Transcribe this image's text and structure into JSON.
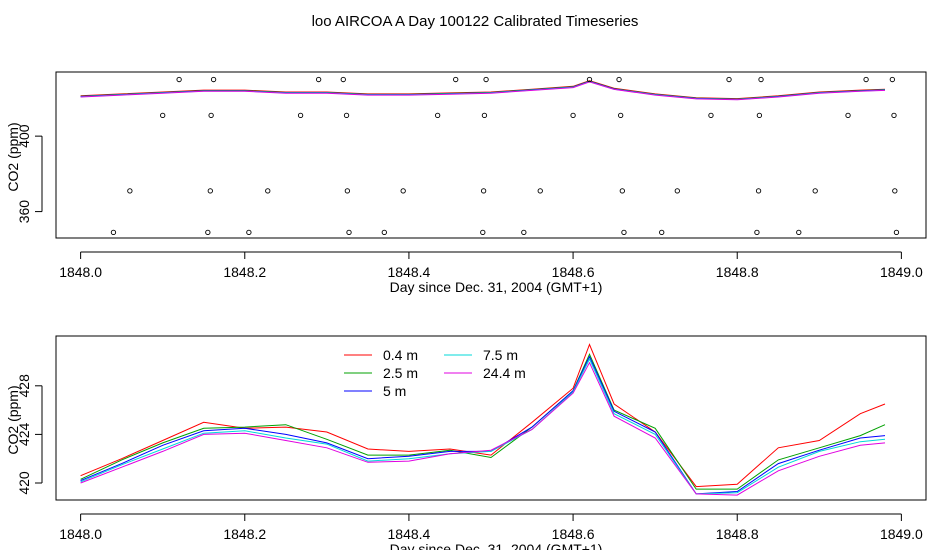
{
  "title": "loo AIRCOA A  Day 100122  Calibrated Timeseries",
  "chart_data": [
    {
      "type": "scatter",
      "xlabel": "Day since Dec. 31, 2004 (GMT+1)",
      "ylabel": "CO2 (ppm)",
      "xlim": [
        1847.97,
        1849.03
      ],
      "ylim": [
        346,
        434
      ],
      "xticks": [
        "1848.0",
        "1848.2",
        "1848.4",
        "1848.6",
        "1848.8",
        "1849.0"
      ],
      "yticks": [
        "360",
        "400"
      ],
      "legend": "none",
      "grid": false,
      "line_series": {
        "x": [
          1848.0,
          1848.05,
          1848.1,
          1848.15,
          1848.2,
          1848.25,
          1848.3,
          1848.35,
          1848.4,
          1848.45,
          1848.5,
          1848.55,
          1848.6,
          1848.62,
          1848.65,
          1848.7,
          1848.75,
          1848.8,
          1848.85,
          1848.9,
          1848.95,
          1848.98
        ],
        "values": [
          421,
          422,
          423,
          424,
          424,
          423,
          423,
          422,
          422,
          422.5,
          423,
          424.5,
          426,
          429,
          425,
          422,
          420,
          419.5,
          421,
          423,
          424,
          424.5
        ]
      },
      "points": [
        {
          "x": 1848.04,
          "y": 349
        },
        {
          "x": 1848.06,
          "y": 371
        },
        {
          "x": 1848.1,
          "y": 411
        },
        {
          "x": 1848.12,
          "y": 430
        },
        {
          "x": 1848.155,
          "y": 349
        },
        {
          "x": 1848.158,
          "y": 371
        },
        {
          "x": 1848.159,
          "y": 411
        },
        {
          "x": 1848.162,
          "y": 430
        },
        {
          "x": 1848.205,
          "y": 349
        },
        {
          "x": 1848.228,
          "y": 371
        },
        {
          "x": 1848.268,
          "y": 411
        },
        {
          "x": 1848.29,
          "y": 430
        },
        {
          "x": 1848.32,
          "y": 430
        },
        {
          "x": 1848.324,
          "y": 411
        },
        {
          "x": 1848.325,
          "y": 371
        },
        {
          "x": 1848.327,
          "y": 349
        },
        {
          "x": 1848.37,
          "y": 349
        },
        {
          "x": 1848.393,
          "y": 371
        },
        {
          "x": 1848.435,
          "y": 411
        },
        {
          "x": 1848.457,
          "y": 430
        },
        {
          "x": 1848.49,
          "y": 349
        },
        {
          "x": 1848.491,
          "y": 371
        },
        {
          "x": 1848.492,
          "y": 411
        },
        {
          "x": 1848.494,
          "y": 430
        },
        {
          "x": 1848.54,
          "y": 349
        },
        {
          "x": 1848.56,
          "y": 371
        },
        {
          "x": 1848.6,
          "y": 411
        },
        {
          "x": 1848.62,
          "y": 430
        },
        {
          "x": 1848.656,
          "y": 430
        },
        {
          "x": 1848.658,
          "y": 411
        },
        {
          "x": 1848.66,
          "y": 371
        },
        {
          "x": 1848.662,
          "y": 349
        },
        {
          "x": 1848.708,
          "y": 349
        },
        {
          "x": 1848.727,
          "y": 371
        },
        {
          "x": 1848.768,
          "y": 411
        },
        {
          "x": 1848.79,
          "y": 430
        },
        {
          "x": 1848.824,
          "y": 349
        },
        {
          "x": 1848.826,
          "y": 371
        },
        {
          "x": 1848.827,
          "y": 411
        },
        {
          "x": 1848.829,
          "y": 430
        },
        {
          "x": 1848.875,
          "y": 349
        },
        {
          "x": 1848.895,
          "y": 371
        },
        {
          "x": 1848.935,
          "y": 411
        },
        {
          "x": 1848.957,
          "y": 430
        },
        {
          "x": 1848.989,
          "y": 430
        },
        {
          "x": 1848.991,
          "y": 411
        },
        {
          "x": 1848.992,
          "y": 371
        },
        {
          "x": 1848.994,
          "y": 349
        }
      ]
    },
    {
      "type": "line",
      "xlabel": "Day since Dec. 31, 2004 (GMT+1)",
      "ylabel": "CO2 (ppm)",
      "xlim": [
        1847.97,
        1849.03
      ],
      "ylim": [
        418.6,
        432.1
      ],
      "xticks": [
        "1848.0",
        "1848.2",
        "1848.4",
        "1848.6",
        "1848.8",
        "1849.0"
      ],
      "yticks": [
        "420",
        "424",
        "428"
      ],
      "legend": "top-left, two columns",
      "grid": false,
      "x": [
        1848.0,
        1848.05,
        1848.1,
        1848.15,
        1848.2,
        1848.25,
        1848.3,
        1848.35,
        1848.4,
        1848.45,
        1848.5,
        1848.55,
        1848.6,
        1848.62,
        1848.65,
        1848.7,
        1848.75,
        1848.8,
        1848.85,
        1848.9,
        1848.95,
        1848.98
      ],
      "series": [
        {
          "name": "0.4 m",
          "color": "#ff0000",
          "values": [
            420.6,
            422.0,
            423.5,
            425.0,
            424.5,
            424.6,
            424.2,
            422.8,
            422.6,
            422.8,
            422.3,
            425.0,
            427.8,
            431.4,
            426.5,
            424.2,
            419.7,
            419.9,
            422.9,
            423.5,
            425.7,
            426.5
          ]
        },
        {
          "name": "2.5 m",
          "color": "#00a000",
          "values": [
            420.3,
            421.9,
            423.3,
            424.5,
            424.6,
            424.8,
            423.6,
            422.3,
            422.3,
            422.7,
            422.1,
            424.6,
            427.6,
            430.6,
            426.0,
            424.5,
            419.5,
            419.5,
            421.9,
            422.9,
            423.9,
            424.8
          ]
        },
        {
          "name": "5 m",
          "color": "#0000ff",
          "values": [
            420.2,
            421.6,
            423.1,
            424.3,
            424.5,
            424.0,
            423.3,
            422.0,
            422.2,
            422.6,
            422.6,
            424.6,
            427.6,
            430.4,
            425.9,
            424.2,
            419.1,
            419.3,
            421.6,
            422.7,
            423.7,
            423.9
          ]
        },
        {
          "name": "7.5 m",
          "color": "#00d8d8",
          "values": [
            420.1,
            421.5,
            422.8,
            424.1,
            424.3,
            423.7,
            423.2,
            421.8,
            422.0,
            422.4,
            422.6,
            424.4,
            427.5,
            430.2,
            425.7,
            424.0,
            419.1,
            419.2,
            421.3,
            422.6,
            423.4,
            423.6
          ]
        },
        {
          "name": "24.4 m",
          "color": "#e000e0",
          "values": [
            420.0,
            421.3,
            422.6,
            424.0,
            424.1,
            423.5,
            422.9,
            421.7,
            421.8,
            422.4,
            422.7,
            424.4,
            427.4,
            429.9,
            425.5,
            423.7,
            419.1,
            419.0,
            421.0,
            422.2,
            423.1,
            423.3
          ]
        }
      ]
    }
  ]
}
